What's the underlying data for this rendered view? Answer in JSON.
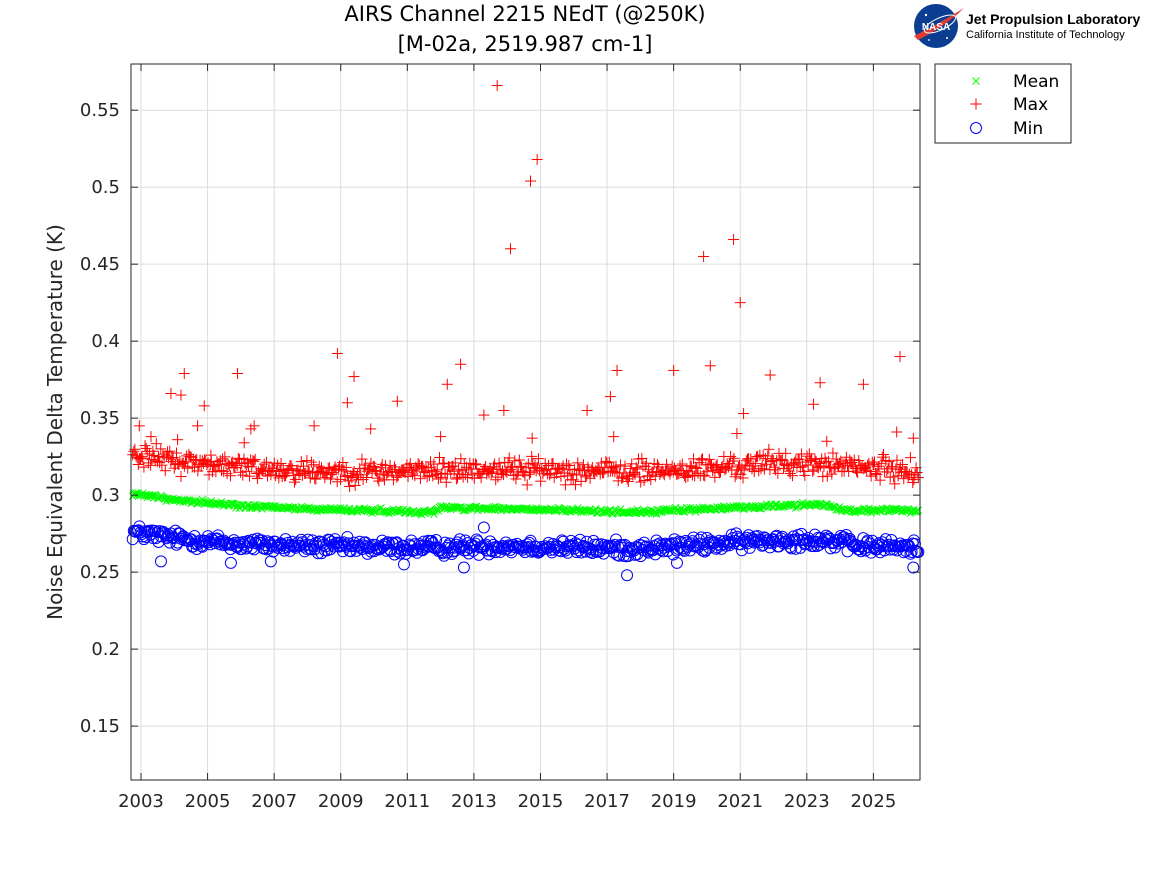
{
  "logo": {
    "nasa_text": "NASA",
    "name": "Jet Propulsion Laboratory",
    "subtitle": "California Institute of Technology"
  },
  "chart_data": {
    "type": "scatter",
    "title": [
      "AIRS Channel 2215 NEdT (@250K)",
      "[M-02a, 2519.987 cm-1]"
    ],
    "xlabel": "",
    "ylabel": "Noise Equivalent Delta Temperature (K)",
    "xlim": [
      2002.7,
      2026.4
    ],
    "ylim": [
      0.115,
      0.58
    ],
    "x_ticks": [
      2003,
      2005,
      2007,
      2009,
      2011,
      2013,
      2015,
      2017,
      2019,
      2021,
      2023,
      2025
    ],
    "x_tick_labels": [
      "2003",
      "2005",
      "2007",
      "2009",
      "2011",
      "2013",
      "2015",
      "2017",
      "2019",
      "2021",
      "2023",
      "2025"
    ],
    "y_ticks": [
      0.15,
      0.2,
      0.25,
      0.3,
      0.35,
      0.4,
      0.45,
      0.5,
      0.55
    ],
    "y_tick_labels": [
      "0.15",
      "0.2",
      "0.25",
      "0.3",
      "0.35",
      "0.4",
      "0.45",
      "0.5",
      "0.55"
    ],
    "grid": true,
    "legend": "outside-top-right",
    "colors": {
      "mean": "#00ff00",
      "max": "#ff0000",
      "min": "#0000ff"
    },
    "series": [
      {
        "name": "Mean",
        "marker": "x",
        "trend": [
          [
            2002.8,
            0.301
          ],
          [
            2004,
            0.297
          ],
          [
            2006,
            0.293
          ],
          [
            2008,
            0.291
          ],
          [
            2010,
            0.29
          ],
          [
            2011.8,
            0.289
          ],
          [
            2012.0,
            0.292
          ],
          [
            2014,
            0.291
          ],
          [
            2016,
            0.29
          ],
          [
            2018,
            0.289
          ],
          [
            2020,
            0.291
          ],
          [
            2022,
            0.293
          ],
          [
            2023.5,
            0.294
          ],
          [
            2024.2,
            0.29
          ],
          [
            2026.4,
            0.29
          ]
        ],
        "spread": 0.0012
      },
      {
        "name": "Max",
        "marker": "+",
        "trend": [
          [
            2002.8,
            0.327
          ],
          [
            2004,
            0.322
          ],
          [
            2006,
            0.318
          ],
          [
            2008,
            0.316
          ],
          [
            2010,
            0.315
          ],
          [
            2012,
            0.316
          ],
          [
            2014,
            0.317
          ],
          [
            2016,
            0.316
          ],
          [
            2018,
            0.315
          ],
          [
            2020,
            0.317
          ],
          [
            2022,
            0.321
          ],
          [
            2024,
            0.319
          ],
          [
            2026.4,
            0.315
          ]
        ],
        "spread": 0.006,
        "outliers": [
          [
            2002.95,
            0.345
          ],
          [
            2003.3,
            0.338
          ],
          [
            2003.9,
            0.366
          ],
          [
            2004.1,
            0.336
          ],
          [
            2004.2,
            0.365
          ],
          [
            2004.3,
            0.379
          ],
          [
            2004.7,
            0.345
          ],
          [
            2004.9,
            0.358
          ],
          [
            2005.1,
            0.326
          ],
          [
            2005.9,
            0.379
          ],
          [
            2006.1,
            0.334
          ],
          [
            2006.3,
            0.343
          ],
          [
            2006.4,
            0.345
          ],
          [
            2008.2,
            0.345
          ],
          [
            2008.9,
            0.392
          ],
          [
            2009.2,
            0.36
          ],
          [
            2009.4,
            0.377
          ],
          [
            2009.9,
            0.343
          ],
          [
            2010.7,
            0.361
          ],
          [
            2012.0,
            0.338
          ],
          [
            2012.2,
            0.372
          ],
          [
            2012.6,
            0.385
          ],
          [
            2013.3,
            0.352
          ],
          [
            2013.7,
            0.566
          ],
          [
            2013.9,
            0.355
          ],
          [
            2014.1,
            0.46
          ],
          [
            2014.7,
            0.504
          ],
          [
            2014.9,
            0.518
          ],
          [
            2014.75,
            0.337
          ],
          [
            2016.4,
            0.355
          ],
          [
            2017.1,
            0.364
          ],
          [
            2017.3,
            0.381
          ],
          [
            2017.2,
            0.338
          ],
          [
            2019.0,
            0.381
          ],
          [
            2019.9,
            0.455
          ],
          [
            2020.1,
            0.384
          ],
          [
            2020.8,
            0.466
          ],
          [
            2021.0,
            0.425
          ],
          [
            2021.1,
            0.353
          ],
          [
            2020.9,
            0.34
          ],
          [
            2021.9,
            0.378
          ],
          [
            2023.2,
            0.359
          ],
          [
            2023.4,
            0.373
          ],
          [
            2023.6,
            0.335
          ],
          [
            2024.7,
            0.372
          ],
          [
            2025.7,
            0.341
          ],
          [
            2025.8,
            0.39
          ],
          [
            2026.2,
            0.337
          ]
        ]
      },
      {
        "name": "Min",
        "marker": "o",
        "trend": [
          [
            2002.8,
            0.276
          ],
          [
            2004,
            0.272
          ],
          [
            2006,
            0.268
          ],
          [
            2008,
            0.267
          ],
          [
            2010,
            0.266
          ],
          [
            2012,
            0.266
          ],
          [
            2014,
            0.267
          ],
          [
            2016,
            0.266
          ],
          [
            2018,
            0.265
          ],
          [
            2020,
            0.268
          ],
          [
            2022,
            0.271
          ],
          [
            2023.5,
            0.271
          ],
          [
            2024.5,
            0.267
          ],
          [
            2026.4,
            0.266
          ]
        ],
        "spread": 0.004,
        "outliers": [
          [
            2003.6,
            0.257
          ],
          [
            2005.7,
            0.256
          ],
          [
            2006.9,
            0.257
          ],
          [
            2010.9,
            0.255
          ],
          [
            2012.7,
            0.253
          ],
          [
            2013.3,
            0.279
          ],
          [
            2017.6,
            0.248
          ],
          [
            2019.1,
            0.256
          ],
          [
            2026.2,
            0.253
          ]
        ]
      }
    ]
  }
}
